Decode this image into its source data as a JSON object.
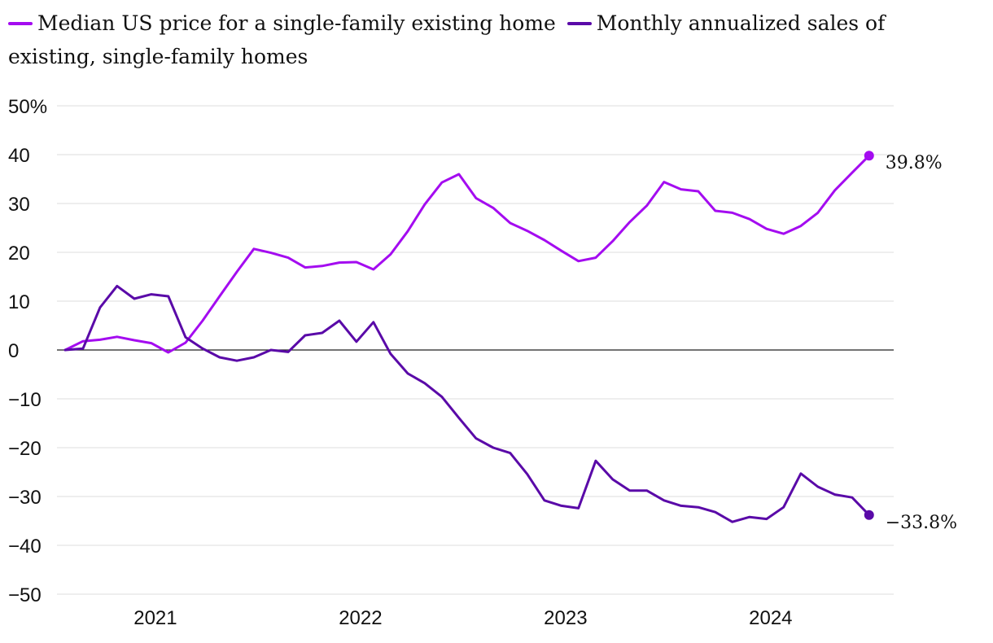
{
  "chart_data": {
    "type": "line",
    "title": "",
    "xlabel": "",
    "ylabel": "",
    "ylim": [
      -50,
      50
    ],
    "y_ticks": [
      50,
      40,
      30,
      20,
      10,
      0,
      -10,
      -20,
      -30,
      -40,
      -50
    ],
    "y_tick_labels": [
      "50%",
      "40",
      "30",
      "20",
      "10",
      "0",
      "−10",
      "−20",
      "−30",
      "−40",
      "−50"
    ],
    "x_ticks": [
      2021,
      2022,
      2023,
      2024
    ],
    "x_tick_labels": [
      "2021",
      "2022",
      "2023",
      "2024"
    ],
    "xlim": [
      2020.54,
      2024.62
    ],
    "grid": true,
    "legend_position": "top",
    "series": [
      {
        "name": "Median US price for a single-family existing home",
        "color": "#a40cf0",
        "end_label": "39.8%",
        "x": [
          2020.58,
          2020.667,
          2020.75,
          2020.833,
          2020.917,
          2021.0,
          2021.083,
          2021.167,
          2021.25,
          2021.333,
          2021.417,
          2021.5,
          2021.583,
          2021.667,
          2021.75,
          2021.833,
          2021.917,
          2022.0,
          2022.083,
          2022.167,
          2022.25,
          2022.333,
          2022.417,
          2022.5,
          2022.583,
          2022.667,
          2022.75,
          2022.833,
          2022.917,
          2023.0,
          2023.083,
          2023.167,
          2023.25,
          2023.333,
          2023.417,
          2023.5,
          2023.583,
          2023.667,
          2023.75,
          2023.833,
          2023.917,
          2024.0,
          2024.083,
          2024.167,
          2024.25,
          2024.333,
          2024.417,
          2024.5
        ],
        "values": [
          0.0,
          1.8,
          2.1,
          2.7,
          2.0,
          1.4,
          -0.5,
          1.5,
          6.0,
          11.0,
          16.0,
          20.7,
          19.9,
          18.9,
          16.9,
          17.2,
          17.9,
          18.0,
          16.5,
          19.6,
          24.3,
          29.8,
          34.3,
          36.0,
          31.1,
          29.1,
          26.0,
          24.4,
          22.5,
          20.3,
          18.2,
          18.9,
          22.3,
          26.2,
          29.6,
          34.4,
          32.9,
          32.5,
          28.5,
          28.1,
          26.8,
          24.8,
          23.8,
          25.4,
          28.1,
          32.7,
          36.3,
          39.8
        ]
      },
      {
        "name": "Monthly annualized sales of existing, single-family homes",
        "color": "#5a0aa8",
        "end_label": "−33.8%",
        "x": [
          2020.58,
          2020.667,
          2020.75,
          2020.833,
          2020.917,
          2021.0,
          2021.083,
          2021.167,
          2021.25,
          2021.333,
          2021.417,
          2021.5,
          2021.583,
          2021.667,
          2021.75,
          2021.833,
          2021.917,
          2022.0,
          2022.083,
          2022.167,
          2022.25,
          2022.333,
          2022.417,
          2022.5,
          2022.583,
          2022.667,
          2022.75,
          2022.833,
          2022.917,
          2023.0,
          2023.083,
          2023.167,
          2023.25,
          2023.333,
          2023.417,
          2023.5,
          2023.583,
          2023.667,
          2023.75,
          2023.833,
          2023.917,
          2024.0,
          2024.083,
          2024.167,
          2024.25,
          2024.333,
          2024.417,
          2024.5
        ],
        "values": [
          0.0,
          0.3,
          8.7,
          13.1,
          10.5,
          11.4,
          11.0,
          2.6,
          0.3,
          -1.5,
          -2.2,
          -1.5,
          0.0,
          -0.4,
          3.0,
          3.5,
          6.0,
          1.7,
          5.7,
          -0.8,
          -4.8,
          -6.8,
          -9.6,
          -13.9,
          -18.1,
          -20.0,
          -21.1,
          -25.4,
          -30.8,
          -31.9,
          -32.4,
          -22.7,
          -26.5,
          -28.8,
          -28.8,
          -30.8,
          -31.9,
          -32.2,
          -33.2,
          -35.2,
          -34.2,
          -34.6,
          -32.2,
          -25.3,
          -28.0,
          -29.6,
          -30.2,
          -33.8
        ]
      }
    ]
  }
}
